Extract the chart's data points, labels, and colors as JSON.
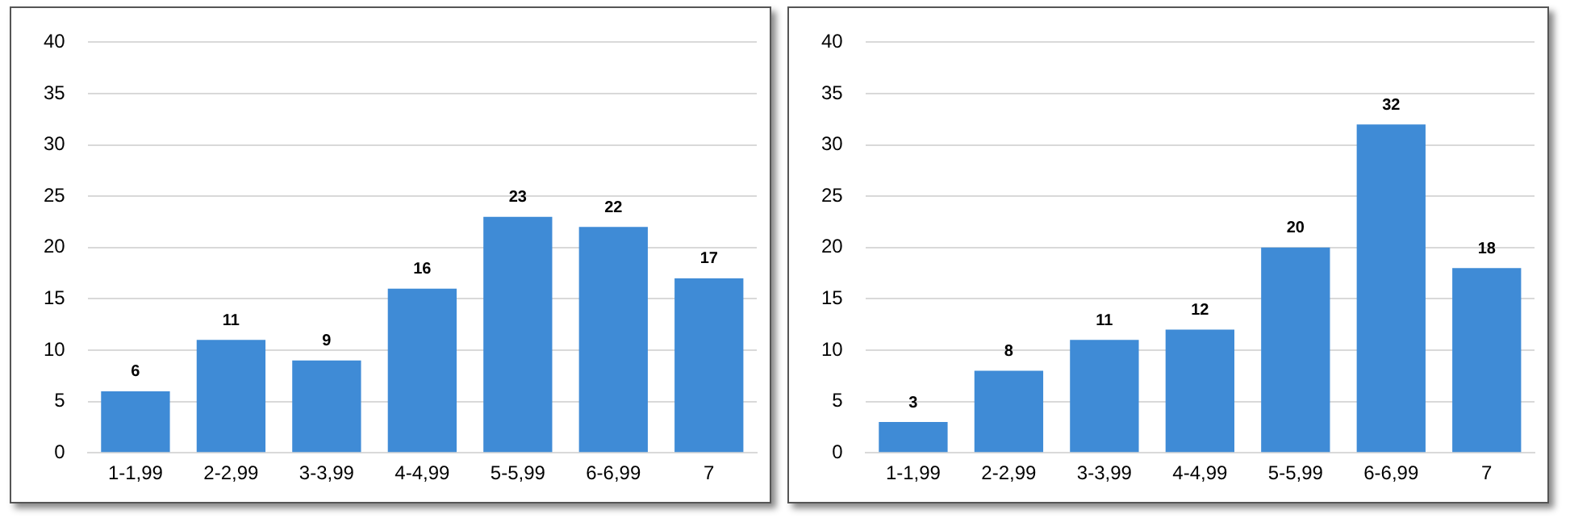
{
  "chart_data": [
    {
      "type": "bar",
      "categories": [
        "1-1,99",
        "2-2,99",
        "3-3,99",
        "4-4,99",
        "5-5,99",
        "6-6,99",
        "7"
      ],
      "values": [
        6,
        11,
        9,
        16,
        23,
        22,
        17
      ],
      "color": "#3f8bd6",
      "ylim": [
        0,
        40
      ],
      "yticks": [
        0,
        5,
        10,
        15,
        20,
        25,
        30,
        35,
        40
      ],
      "grid": "y",
      "data_labels": true
    },
    {
      "type": "bar",
      "categories": [
        "1-1,99",
        "2-2,99",
        "3-3,99",
        "4-4,99",
        "5-5,99",
        "6-6,99",
        "7"
      ],
      "values": [
        3,
        8,
        11,
        12,
        20,
        32,
        18
      ],
      "color": "#3f8bd6",
      "ylim": [
        0,
        40
      ],
      "yticks": [
        0,
        5,
        10,
        15,
        20,
        25,
        30,
        35,
        40
      ],
      "grid": "y",
      "data_labels": true
    }
  ]
}
